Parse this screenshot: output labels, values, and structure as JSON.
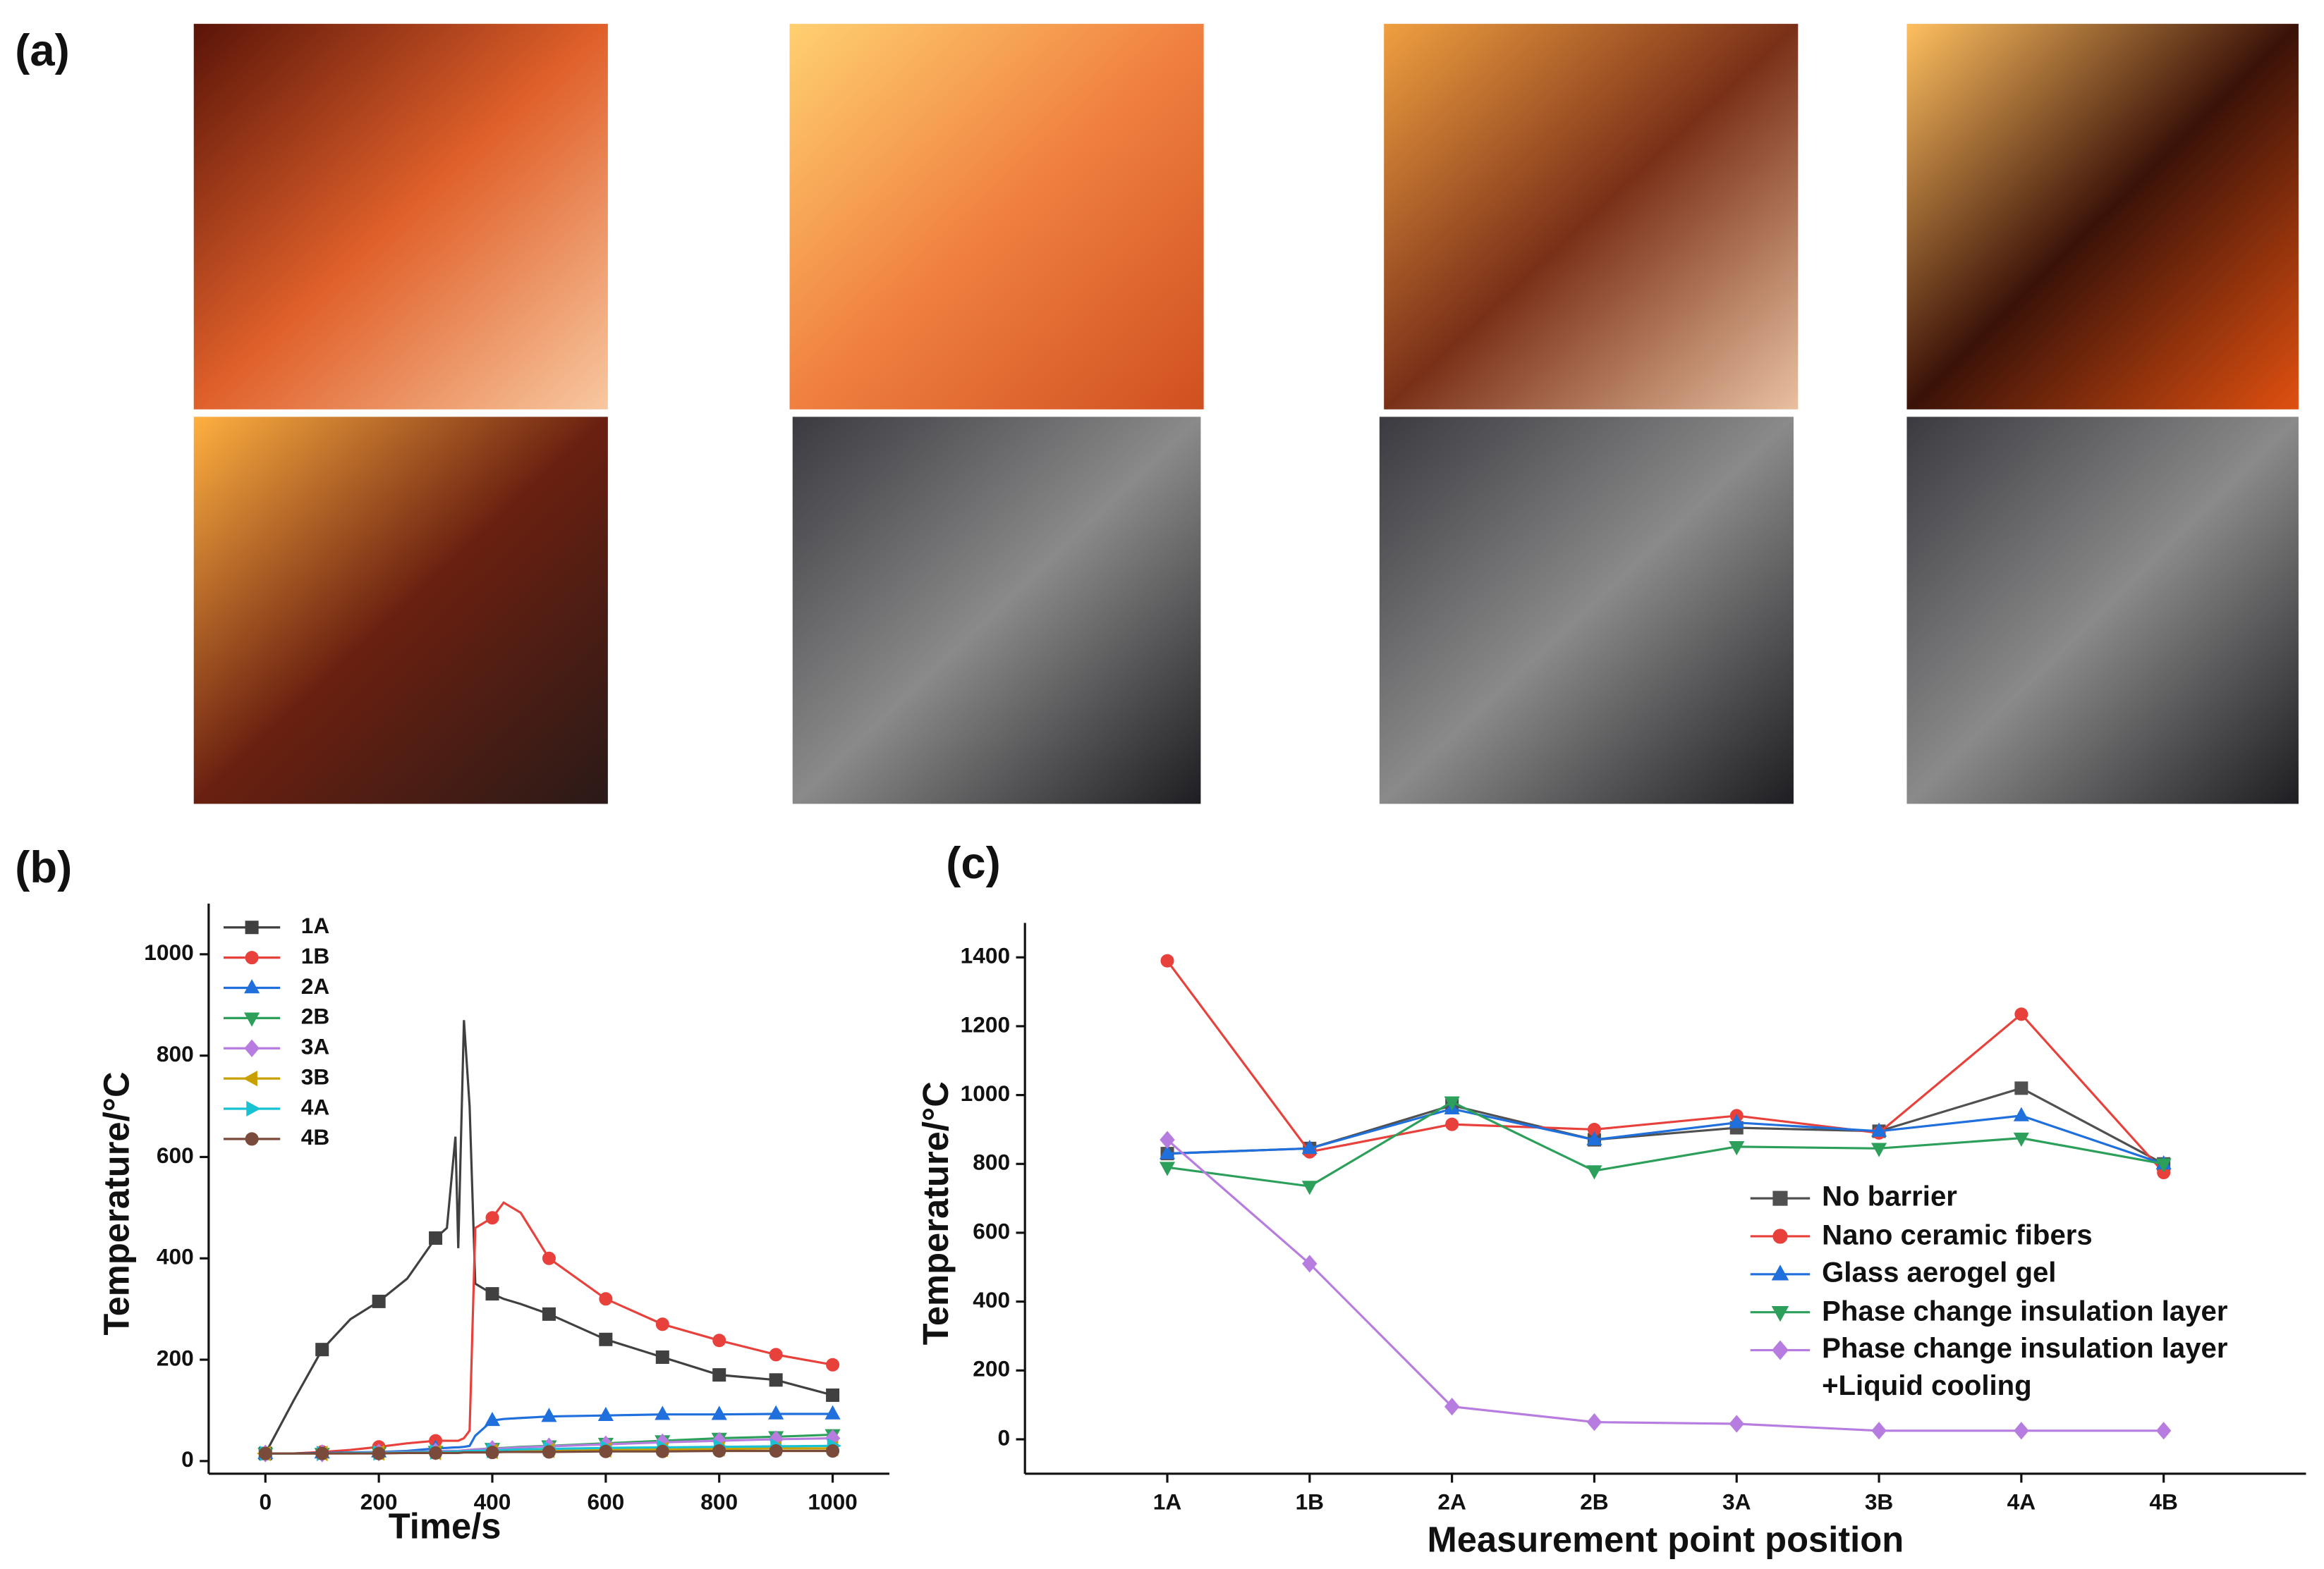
{
  "panels": [
    "(a)",
    "(b)",
    "(c)"
  ],
  "chart_data": [
    {
      "type": "line",
      "ylabel": "Temperature/°C",
      "xlabel": "Time/s",
      "x": [
        0,
        50,
        100,
        150,
        200,
        250,
        300,
        320,
        335,
        340,
        350,
        360,
        370,
        400,
        420,
        450,
        500,
        600,
        700,
        800,
        900,
        1000
      ],
      "xlim": [
        -100,
        1100
      ],
      "xticks": [
        0,
        200,
        400,
        600,
        800,
        1000
      ],
      "ylim": [
        -25,
        1100
      ],
      "yticks": [
        0,
        200,
        400,
        600,
        800,
        1000
      ],
      "legend": "upper left",
      "series": [
        {
          "name": "1A",
          "color": "#404040",
          "marker": "square",
          "values": [
            15,
            120,
            220,
            280,
            315,
            360,
            440,
            460,
            640,
            420,
            870,
            700,
            350,
            330,
            320,
            310,
            290,
            240,
            205,
            170,
            160,
            130
          ]
        },
        {
          "name": "1B",
          "color": "#e8413c",
          "marker": "circle",
          "values": [
            15,
            15,
            18,
            22,
            28,
            35,
            40,
            40,
            40,
            40,
            45,
            60,
            460,
            480,
            510,
            490,
            400,
            320,
            270,
            238,
            210,
            190
          ]
        },
        {
          "name": "2A",
          "color": "#1f6fdc",
          "marker": "triangle-up",
          "values": [
            15,
            15,
            16,
            17,
            18,
            20,
            25,
            26,
            27,
            27,
            28,
            30,
            50,
            80,
            83,
            85,
            88,
            90,
            92,
            92,
            93,
            93
          ]
        },
        {
          "name": "2B",
          "color": "#2ca05a",
          "marker": "triangle-down",
          "values": [
            15,
            15,
            15,
            16,
            17,
            18,
            19,
            20,
            20,
            20,
            21,
            22,
            23,
            25,
            26,
            28,
            30,
            35,
            40,
            45,
            48,
            52
          ]
        },
        {
          "name": "3A",
          "color": "#b77ce0",
          "marker": "diamond",
          "values": [
            15,
            15,
            15,
            16,
            17,
            18,
            19,
            20,
            20,
            20,
            21,
            22,
            23,
            24,
            25,
            27,
            29,
            33,
            37,
            40,
            43,
            45
          ]
        },
        {
          "name": "3B",
          "color": "#c8a000",
          "marker": "triangle-left",
          "values": [
            15,
            15,
            15,
            15,
            16,
            16,
            17,
            17,
            17,
            17,
            18,
            18,
            18,
            19,
            19,
            20,
            21,
            22,
            23,
            24,
            25,
            25
          ]
        },
        {
          "name": "4A",
          "color": "#19c2d2",
          "marker": "triangle-right",
          "values": [
            15,
            15,
            15,
            16,
            16,
            17,
            18,
            18,
            19,
            19,
            19,
            20,
            20,
            21,
            22,
            23,
            24,
            26,
            27,
            28,
            29,
            30
          ]
        },
        {
          "name": "4B",
          "color": "#7a4a3a",
          "marker": "circle",
          "values": [
            15,
            15,
            15,
            15,
            15,
            16,
            16,
            16,
            16,
            16,
            17,
            17,
            17,
            17,
            18,
            18,
            18,
            19,
            19,
            20,
            20,
            20
          ]
        }
      ]
    },
    {
      "type": "line",
      "ylabel": "Temperature/°C",
      "xlabel": "Measurement point position",
      "categories": [
        "1A",
        "1B",
        "2A",
        "2B",
        "3A",
        "3B",
        "4A",
        "4B"
      ],
      "ylim": [
        -100,
        1500
      ],
      "yticks": [
        0,
        200,
        400,
        600,
        800,
        1000,
        1200,
        1400
      ],
      "legend": "center right",
      "series": [
        {
          "name": "No barrier",
          "color": "#505050",
          "marker": "square",
          "values": [
            830,
            845,
            970,
            870,
            905,
            895,
            1020,
            800
          ]
        },
        {
          "name": "Nano ceramic fibers",
          "color": "#e8413c",
          "marker": "circle",
          "values": [
            1390,
            835,
            915,
            900,
            940,
            890,
            1235,
            775
          ]
        },
        {
          "name": "Glass aerogel gel",
          "color": "#1f6fdc",
          "marker": "triangle-up",
          "values": [
            830,
            845,
            960,
            870,
            920,
            895,
            940,
            800
          ]
        },
        {
          "name": "Phase change insulation layer",
          "color": "#2ca05a",
          "marker": "triangle-down",
          "values": [
            790,
            735,
            980,
            780,
            850,
            845,
            875,
            800
          ]
        },
        {
          "name": "Phase change insulation layer\n+Liquid cooling",
          "color": "#b77ce0",
          "marker": "diamond",
          "values": [
            870,
            510,
            95,
            50,
            45,
            25,
            25,
            25
          ]
        }
      ]
    }
  ]
}
